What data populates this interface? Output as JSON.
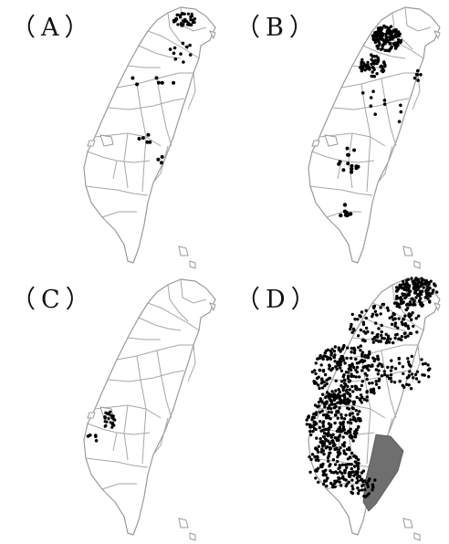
{
  "panels": [
    {
      "id": "A",
      "label": "（A）",
      "density": "sparse"
    },
    {
      "id": "B",
      "label": "（B）",
      "density": "north-cluster"
    },
    {
      "id": "C",
      "label": "（C）",
      "density": "central-west"
    },
    {
      "id": "D",
      "label": "（D）",
      "density": "dense",
      "highlight_region": true
    }
  ],
  "colors": {
    "outline": "#9a9a9a",
    "dots": "#000000",
    "highlight": "#6f6f6f"
  }
}
